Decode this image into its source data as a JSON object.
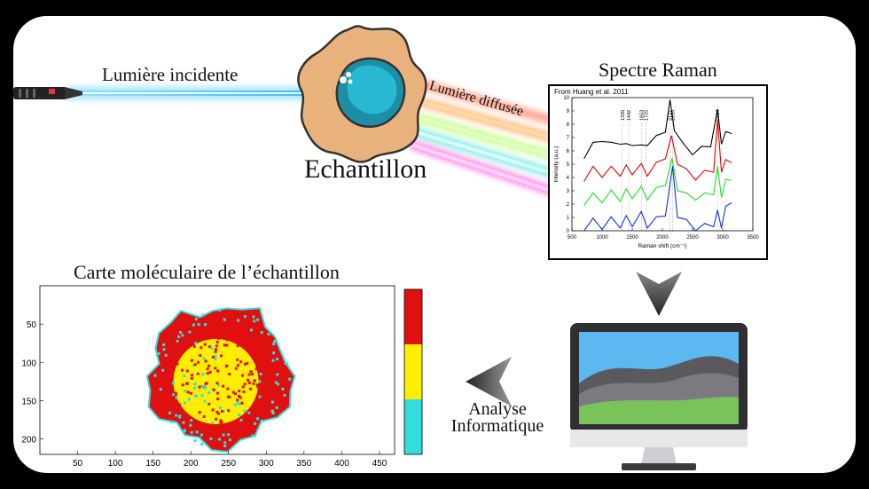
{
  "labels": {
    "incident": "Lumière incidente",
    "scattered": "Lumière diffusée",
    "sample": "Echantillon",
    "spectrum_title": "Spectre Raman",
    "map_title": "Carte moléculaire de l’échantillon",
    "analysis_line1": "Analyse",
    "analysis_line2": "Informatique"
  },
  "colors": {
    "beam": "#57cdfb",
    "cell_body": "#e9b27c",
    "cell_nucleus": "#1c8fa6",
    "map_red": "#e01010",
    "map_yellow": "#ffee00",
    "map_cyan": "#33dddd"
  },
  "chart_data": [
    {
      "type": "line",
      "source": "From Huang et al. 2011",
      "xlabel": "Raman shift (cm⁻¹)",
      "ylabel": "Intensity (a.u.)",
      "xlim": [
        500,
        3500
      ],
      "ylim": [
        0,
        10
      ],
      "xticks": [
        500,
        1000,
        1500,
        2000,
        2500,
        3000,
        3500
      ],
      "yticks": [
        0,
        1,
        2,
        3,
        4,
        5,
        6,
        7,
        8,
        9,
        10
      ],
      "peak_labels": [
        "1335",
        "1442",
        "1653",
        "1725",
        "2127",
        "2169",
        "2914"
      ],
      "peak_positions": [
        1335,
        1442,
        1653,
        1725,
        2127,
        2169,
        2914
      ],
      "series": [
        {
          "color": "#000000",
          "x": [
            700,
            850,
            1000,
            1150,
            1300,
            1400,
            1500,
            1650,
            1750,
            1900,
            2050,
            2127,
            2200,
            2350,
            2500,
            2650,
            2800,
            2914,
            2980,
            3050,
            3150
          ],
          "y": [
            5.6,
            6.4,
            6.9,
            6.4,
            6.7,
            6.3,
            6.6,
            6.2,
            6.6,
            6.9,
            7.6,
            9.6,
            7.7,
            6.3,
            5.9,
            6.1,
            6.5,
            8.9,
            6.7,
            7.2,
            7.5
          ]
        },
        {
          "color": "#e00000",
          "x": [
            700,
            850,
            1000,
            1150,
            1300,
            1400,
            1500,
            1650,
            1750,
            1900,
            2050,
            2150,
            2250,
            2400,
            2550,
            2700,
            2850,
            2914,
            2980,
            3050,
            3150
          ],
          "y": [
            3.9,
            4.6,
            4.2,
            4.6,
            4.3,
            4.7,
            4.4,
            4.8,
            4.3,
            4.9,
            5.6,
            6.9,
            5.2,
            4.4,
            4.0,
            4.3,
            4.6,
            8.1,
            4.6,
            5.1,
            5.3
          ]
        },
        {
          "color": "#22dd22",
          "x": [
            700,
            850,
            1000,
            1150,
            1300,
            1400,
            1500,
            1650,
            1750,
            1900,
            2050,
            2160,
            2250,
            2400,
            2550,
            2700,
            2850,
            2914,
            2980,
            3050,
            3150
          ],
          "y": [
            2.1,
            2.6,
            2.3,
            2.8,
            2.4,
            2.9,
            2.6,
            3.1,
            2.5,
            3.0,
            3.6,
            5.2,
            3.2,
            2.6,
            2.5,
            2.6,
            2.9,
            4.6,
            2.7,
            3.6,
            4.0
          ]
        },
        {
          "color": "#1030e0",
          "x": [
            700,
            850,
            1000,
            1150,
            1300,
            1400,
            1500,
            1650,
            1750,
            1900,
            2050,
            2169,
            2250,
            2400,
            2550,
            2700,
            2850,
            2914,
            2980,
            3050,
            3150
          ],
          "y": [
            0.2,
            0.7,
            0.3,
            0.8,
            0.4,
            0.9,
            0.5,
            1.2,
            0.4,
            0.8,
            1.3,
            4.6,
            1.2,
            0.6,
            0.2,
            0.3,
            0.5,
            1.3,
            0.4,
            1.6,
            2.3
          ]
        }
      ]
    },
    {
      "type": "heatmap",
      "xlim": [
        0,
        470
      ],
      "ylim": [
        220,
        0
      ],
      "xticks": [
        50,
        100,
        150,
        200,
        250,
        300,
        350,
        400,
        450
      ],
      "yticks": [
        50,
        100,
        150,
        200
      ],
      "colorbar": [
        "#e01010",
        "#ffee00",
        "#33dddd"
      ],
      "legend": "right"
    }
  ]
}
